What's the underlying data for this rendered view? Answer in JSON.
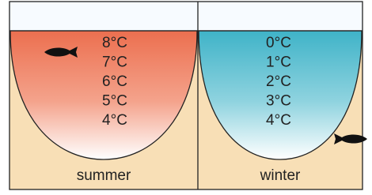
{
  "panels": [
    {
      "label": "summer",
      "temperatures": [
        "8°C",
        "7°C",
        "6°C",
        "5°C",
        "4°C"
      ]
    },
    {
      "label": "winter",
      "temperatures": [
        "0°C",
        "1°C",
        "2°C",
        "3°C",
        "4°C"
      ]
    }
  ]
}
